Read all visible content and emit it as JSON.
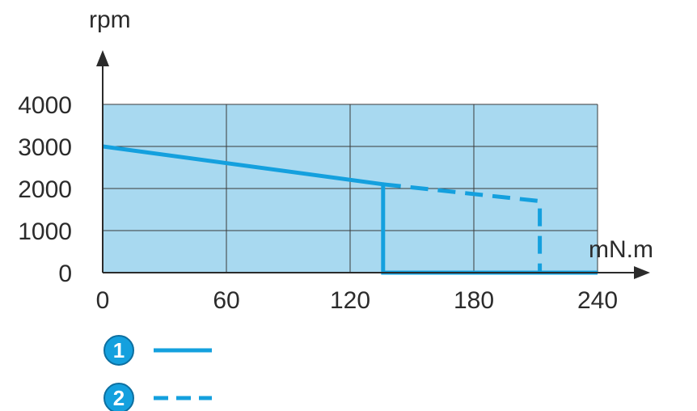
{
  "chart_data": {
    "type": "line",
    "xlabel": "mN.m",
    "ylabel": "rpm",
    "xlim": [
      0,
      240
    ],
    "ylim": [
      0,
      4000
    ],
    "x_ticks": [
      "0",
      "60",
      "120",
      "180",
      "240"
    ],
    "y_ticks": [
      "0",
      "1000",
      "2000",
      "3000",
      "4000"
    ],
    "grid": true,
    "legend_position": "bottom-left",
    "plot_background_color": "#a8d9f0",
    "line_color": "#14a0de",
    "grid_color": "#3a3a3a",
    "series": [
      {
        "name": "1",
        "style": "solid",
        "points": [
          {
            "x": 0,
            "y": 3000
          },
          {
            "x": 136,
            "y": 2100
          },
          {
            "x": 136,
            "y": 0
          },
          {
            "x": 240,
            "y": 0
          }
        ]
      },
      {
        "name": "2",
        "style": "dashed",
        "points": [
          {
            "x": 136,
            "y": 2100
          },
          {
            "x": 212,
            "y": 1700
          },
          {
            "x": 212,
            "y": 0
          }
        ]
      }
    ]
  }
}
